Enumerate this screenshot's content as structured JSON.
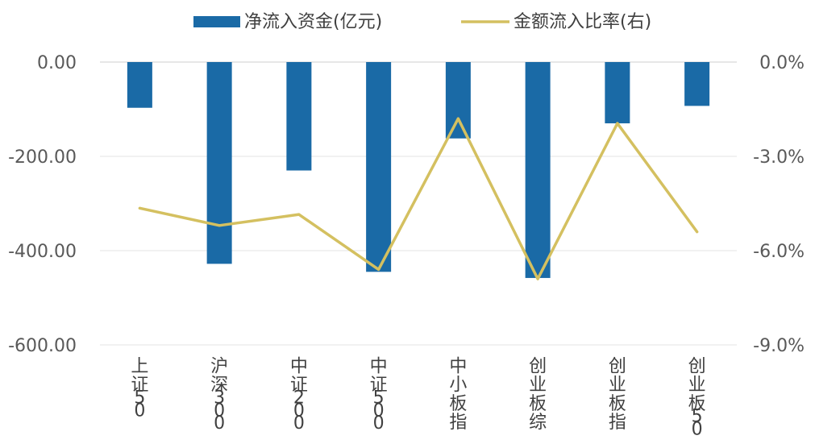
{
  "chart_data": {
    "type": "bar",
    "categories": [
      "上证50",
      "沪深300",
      "中证200",
      "中证500",
      "中小板指",
      "创业板综",
      "创业板指",
      "创业板50"
    ],
    "series": [
      {
        "name": "净流入资金(亿元)",
        "type": "bar",
        "axis": "left",
        "color": "#1a6aa6",
        "values": [
          -97,
          -428,
          -230,
          -445,
          -162,
          -458,
          -130,
          -93
        ]
      },
      {
        "name": "金额流入比率(右)",
        "type": "line",
        "axis": "right",
        "color": "#d4c060",
        "values": [
          -4.65,
          -5.2,
          -4.85,
          -6.6,
          -1.8,
          -6.9,
          -1.95,
          -5.4
        ]
      }
    ],
    "y_left": {
      "ylim": [
        -600,
        0
      ],
      "ticks": [
        0,
        -200,
        -400,
        -600
      ],
      "tick_labels": [
        "0.00",
        "-200.00",
        "-400.00",
        "-600.00"
      ]
    },
    "y_right": {
      "ylim": [
        -9,
        0
      ],
      "ticks": [
        0,
        -3,
        -6,
        -9
      ],
      "tick_labels": [
        "0.0%",
        "-3.0%",
        "-6.0%",
        "-9.0%"
      ]
    },
    "grid": true,
    "legend": "top",
    "title": "",
    "xlabel": "",
    "ylabel": ""
  }
}
